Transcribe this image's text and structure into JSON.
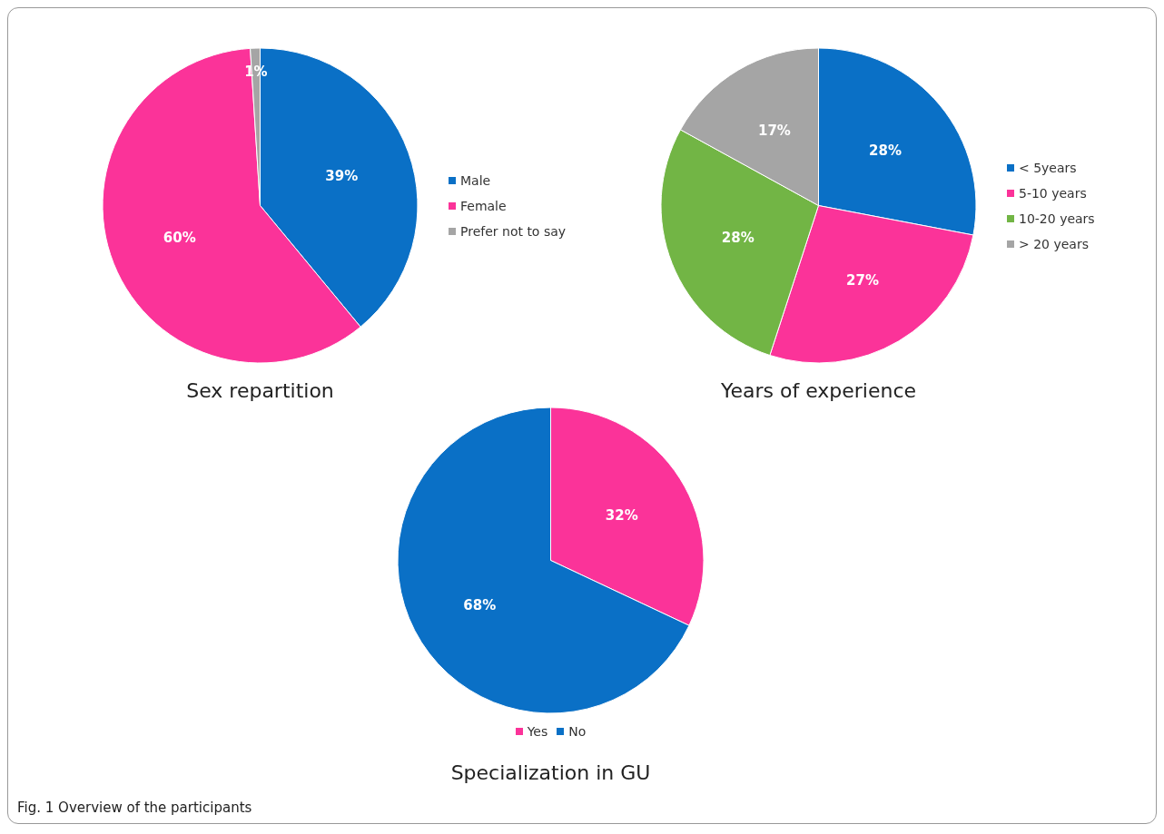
{
  "chart_data": [
    {
      "type": "pie",
      "title": "Sex repartition",
      "categories": [
        "Male",
        "Female",
        "Prefer not to say"
      ],
      "values": [
        39,
        60,
        1
      ],
      "value_labels": [
        "39%",
        "60%",
        "1%"
      ],
      "colors": [
        "#0a70c6",
        "#fb3399",
        "#a5a5a5"
      ],
      "legend": "right"
    },
    {
      "type": "pie",
      "title": "Years of experience",
      "categories": [
        "< 5years",
        "5-10 years",
        "10-20 years",
        "> 20 years"
      ],
      "values": [
        28,
        27,
        28,
        17
      ],
      "value_labels": [
        "28%",
        "27%",
        "28%",
        "17%"
      ],
      "colors": [
        "#0a70c6",
        "#fb3399",
        "#72b545",
        "#a5a5a5"
      ],
      "legend": "right"
    },
    {
      "type": "pie",
      "title": "Specialization in GU",
      "categories": [
        "Yes",
        "No"
      ],
      "values": [
        32,
        68
      ],
      "value_labels": [
        "32%",
        "68%"
      ],
      "colors": [
        "#fb3399",
        "#0a70c6"
      ],
      "legend": "bottom",
      "annotations": [
        "Fig. 1 Overview of the participants"
      ]
    }
  ]
}
